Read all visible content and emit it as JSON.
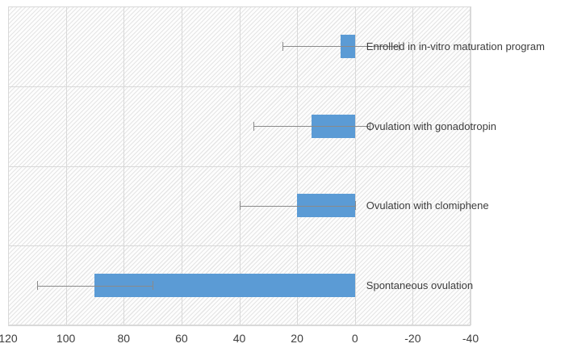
{
  "chart_data": {
    "type": "bar",
    "orientation": "horizontal",
    "title": "",
    "xlabel": "",
    "ylabel": "",
    "categories": [
      "Enrolled in in-vitro maturation program",
      "Ovulation with gonadotropin",
      "Ovulation with clomiphene",
      "Spontaneous ovulation"
    ],
    "values": [
      5,
      15,
      20,
      90
    ],
    "error_plus_minus": 20,
    "error_ranges": [
      [
        -15,
        25
      ],
      [
        -5,
        35
      ],
      [
        0,
        40
      ],
      [
        70,
        110
      ]
    ],
    "x_ticks": [
      120,
      100,
      80,
      60,
      40,
      20,
      0,
      -20,
      -40
    ],
    "x_tick_labels": [
      "120",
      "100",
      "80",
      "60",
      "40",
      "20",
      "0",
      "-20",
      "-40"
    ],
    "xlim": [
      120,
      -40
    ],
    "x_axis_reversed": true,
    "grid": true,
    "legend": "none",
    "bar_color": "#5B9BD5",
    "error_bar_color": "#8a8a8a",
    "gridline_color": "#d9d9d9",
    "plot_background": "diagonal-hatch-light-gray",
    "label_position": "right-of-bar-at-zero"
  }
}
